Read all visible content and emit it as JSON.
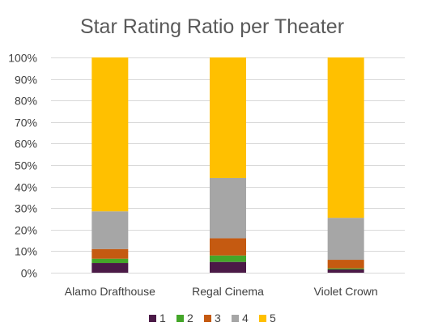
{
  "chart_data": {
    "type": "bar",
    "stacked": "percent",
    "title": "Star Rating Ratio per Theater",
    "xlabel": "",
    "ylabel": "",
    "ylim": [
      0,
      100
    ],
    "y_ticks": [
      "0%",
      "10%",
      "20%",
      "30%",
      "40%",
      "50%",
      "60%",
      "70%",
      "80%",
      "90%",
      "100%"
    ],
    "categories": [
      "Alamo Drafthouse",
      "Regal Cinema",
      "Violet Crown"
    ],
    "series": [
      {
        "name": "1",
        "color": "#4B1A47",
        "values": [
          4.5,
          5.0,
          1.5
        ]
      },
      {
        "name": "2",
        "color": "#44A629",
        "values": [
          2.0,
          3.0,
          0.5
        ]
      },
      {
        "name": "3",
        "color": "#C55A11",
        "values": [
          4.5,
          8.0,
          4.0
        ]
      },
      {
        "name": "4",
        "color": "#A6A6A6",
        "values": [
          17.5,
          28.0,
          19.5
        ]
      },
      {
        "name": "5",
        "color": "#FFC000",
        "values": [
          71.5,
          56.0,
          74.5
        ]
      }
    ],
    "legend": "bottom",
    "grid": true
  }
}
